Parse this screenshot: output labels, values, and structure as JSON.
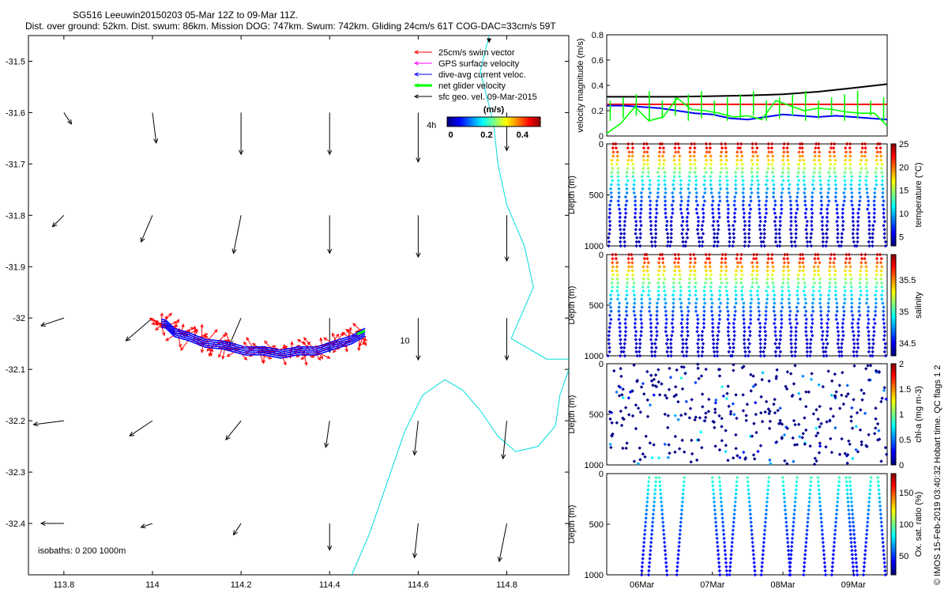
{
  "title": {
    "line1": "SG516 Leeuwin20150203 05-Mar 12Z to 09-Mar 11Z.",
    "line2": "Dist. over ground: 52km. Dist. swum: 86km. Mission DOG: 747km. Swum: 742km. Gliding 24cm/s 61T COG-DAC=33cm/s 59T"
  },
  "side_note": "© IMOS 15-Feb-2019 03:40:32 Hobart time. QC flags 1  2",
  "colors": {
    "swim": "#ff0000",
    "gps": "#ff00ff",
    "dac": "#0000ff",
    "net": "#00ff00",
    "geo": "#000000",
    "coast": "#00dddd"
  },
  "chart_data": [
    {
      "type": "scatter",
      "name": "map",
      "xlim": [
        113.72,
        114.94
      ],
      "ylim": [
        -32.5,
        -31.45
      ],
      "xticks": [
        113.8,
        114.0,
        114.2,
        114.4,
        114.6,
        114.8
      ],
      "xtick_labels": [
        "113.8",
        "114",
        "114.2",
        "114.4",
        "114.6",
        "114.8"
      ],
      "yticks": [
        -31.5,
        -31.6,
        -31.7,
        -31.8,
        -31.9,
        -32.0,
        -32.1,
        -32.2,
        -32.3,
        -32.4
      ],
      "ytick_labels": [
        "-31.5",
        "-31.6",
        "-31.7",
        "-31.8",
        "-31.9",
        "-32",
        "-32.1",
        "-32.2",
        "-32.3",
        "-32.4"
      ],
      "legend": {
        "position": "top-right",
        "entries": [
          {
            "label": "25cm/s swim vector",
            "color": "#ff0000"
          },
          {
            "label": "GPS surface velocity",
            "color": "#ff00ff"
          },
          {
            "label": "dive-avg current veloc.",
            "color": "#0000ff"
          },
          {
            "label": "net glider velocity",
            "color": "#00ff00"
          },
          {
            "label": "sfc geo. vel. 09-Mar-2015",
            "color": "#000000"
          }
        ]
      },
      "colorbar": {
        "label": "(m/s)",
        "ticks": [
          0,
          0.2,
          0.4
        ],
        "tick_labels": [
          "0",
          "0.2",
          "0.4"
        ],
        "range": [
          -0.02,
          0.5
        ]
      },
      "annotations": [
        {
          "text": "4h",
          "x": 114.63,
          "y": -31.63
        },
        {
          "text": "10",
          "x": 114.57,
          "y": -32.05
        }
      ],
      "isobaths_label": "isobaths: 0   200   1000m",
      "track": {
        "lon": [
          114.48,
          114.45,
          114.41,
          114.37,
          114.33,
          114.29,
          114.25,
          114.21,
          114.16,
          114.12,
          114.08,
          114.05,
          114.03,
          114.02
        ],
        "lat": [
          -32.03,
          -32.04,
          -32.055,
          -32.062,
          -32.066,
          -32.068,
          -32.066,
          -32.062,
          -32.055,
          -32.047,
          -32.038,
          -32.026,
          -32.014,
          -32.008
        ]
      },
      "net_velocity_end": {
        "lon": 114.48,
        "lat": -32.025
      },
      "current_vectors": {
        "grid_lon": [
          113.8,
          114.0,
          114.2,
          114.4,
          114.6,
          114.8
        ],
        "grid_lat": [
          -31.6,
          -31.8,
          -32.0,
          -32.2,
          -32.4
        ],
        "u": [
          [
            0.02,
            0.01,
            0.0,
            0.0,
            0.0,
            0.0
          ],
          [
            -0.03,
            -0.03,
            -0.02,
            0.0,
            0.0,
            0.0
          ],
          [
            -0.06,
            -0.07,
            -0.03,
            0.0,
            0.0,
            0.0
          ],
          [
            -0.08,
            -0.06,
            -0.04,
            -0.01,
            -0.01,
            -0.01
          ],
          [
            -0.06,
            -0.03,
            -0.02,
            0.0,
            -0.01,
            -0.02
          ]
        ],
        "v": [
          [
            -0.03,
            -0.08,
            -0.11,
            -0.11,
            -0.13,
            -0.1
          ],
          [
            -0.03,
            -0.07,
            -0.1,
            -0.1,
            -0.11,
            -0.12
          ],
          [
            -0.02,
            -0.06,
            -0.07,
            -0.09,
            -0.11,
            -0.11
          ],
          [
            -0.01,
            -0.04,
            -0.05,
            -0.07,
            -0.09,
            -0.1
          ],
          [
            0.0,
            -0.01,
            -0.03,
            -0.07,
            -0.09,
            -0.1
          ]
        ]
      },
      "coastline": {
        "lon": [
          114.76,
          114.74,
          114.77,
          114.78,
          114.8,
          114.84,
          114.86,
          114.83,
          114.81,
          114.85,
          114.89,
          114.94
        ],
        "lat": [
          -31.45,
          -31.52,
          -31.62,
          -31.7,
          -31.78,
          -31.86,
          -31.94,
          -32.0,
          -32.04,
          -32.06,
          -32.08,
          -32.08
        ]
      },
      "coastline2": {
        "lon": [
          114.45,
          114.49,
          114.53,
          114.57,
          114.61,
          114.66,
          114.7,
          114.74,
          114.78,
          114.82,
          114.87,
          114.91,
          114.92,
          114.94
        ],
        "lat": [
          -32.5,
          -32.42,
          -32.32,
          -32.22,
          -32.15,
          -32.12,
          -32.14,
          -32.18,
          -32.23,
          -32.26,
          -32.25,
          -32.21,
          -32.15,
          -32.1
        ]
      }
    },
    {
      "type": "line",
      "name": "velocity",
      "ylabel": "velocity magnitude (m/s)",
      "ylim": [
        0,
        0.8
      ],
      "yticks": [
        0,
        0.2,
        0.4,
        0.6,
        0.8
      ],
      "ytick_labels": [
        "0",
        "0.2",
        "0.4",
        "0.6",
        "0.8"
      ],
      "x_days": [
        5.5,
        9.48
      ],
      "series": [
        {
          "name": "sfc geo. vel.",
          "color": "#000000",
          "x": [
            5.5,
            6.0,
            6.5,
            7.0,
            7.5,
            8.0,
            8.5,
            9.0,
            9.48
          ],
          "values": [
            0.31,
            0.31,
            0.31,
            0.315,
            0.32,
            0.33,
            0.35,
            0.38,
            0.41
          ]
        },
        {
          "name": "25cm/s swim",
          "color": "#ff0000",
          "x": [
            5.5,
            9.48
          ],
          "values": [
            0.25,
            0.25
          ]
        },
        {
          "name": "dive-avg current",
          "color": "#0000ff",
          "x": [
            5.5,
            5.75,
            6.0,
            6.25,
            6.5,
            6.75,
            7.0,
            7.25,
            7.5,
            7.75,
            8.0,
            8.25,
            8.5,
            8.75,
            9.0,
            9.25,
            9.48
          ],
          "values": [
            0.24,
            0.24,
            0.23,
            0.22,
            0.2,
            0.18,
            0.17,
            0.14,
            0.13,
            0.15,
            0.17,
            0.16,
            0.15,
            0.16,
            0.15,
            0.14,
            0.13
          ]
        },
        {
          "name": "net glider velocity",
          "color": "#00ff00",
          "x": [
            5.5,
            5.7,
            5.9,
            6.1,
            6.3,
            6.5,
            6.7,
            6.9,
            7.1,
            7.3,
            7.5,
            7.7,
            7.9,
            8.1,
            8.3,
            8.5,
            8.7,
            8.9,
            9.1,
            9.3,
            9.48
          ],
          "values": [
            0.02,
            0.1,
            0.23,
            0.12,
            0.15,
            0.3,
            0.21,
            0.2,
            0.18,
            0.15,
            0.16,
            0.13,
            0.28,
            0.24,
            0.2,
            0.22,
            0.21,
            0.19,
            0.18,
            0.18,
            0.08
          ]
        }
      ]
    },
    {
      "type": "scatter",
      "name": "temperature",
      "ylabel": "Depth (m)",
      "ylim": [
        1000,
        0
      ],
      "yticks": [
        0,
        500,
        1000
      ],
      "ytick_labels": [
        "0",
        "500",
        "1000"
      ],
      "colorbar": {
        "label": "temperature (°C)",
        "range": [
          3,
          25
        ],
        "ticks": [
          5,
          10,
          15,
          20,
          25
        ],
        "tick_labels": [
          "5",
          "10",
          "15",
          "20",
          "25"
        ]
      },
      "profiles": 36,
      "max_depth": 1000,
      "value_surface": 24,
      "value_bottom": 4
    },
    {
      "type": "scatter",
      "name": "salinity",
      "ylabel": "Depth (m)",
      "ylim": [
        1000,
        0
      ],
      "yticks": [
        0,
        500,
        1000
      ],
      "ytick_labels": [
        "0",
        "500",
        "1000"
      ],
      "colorbar": {
        "label": "salinity",
        "range": [
          34.3,
          35.9
        ],
        "ticks": [
          34.5,
          35,
          35.5
        ],
        "tick_labels": [
          "34.5",
          "35",
          "35.5"
        ]
      },
      "profiles": 36,
      "max_depth": 1000,
      "value_surface": 35.8,
      "value_bottom": 34.4
    },
    {
      "type": "scatter",
      "name": "chl-a",
      "ylabel": "Depth (m)",
      "ylim": [
        1000,
        0
      ],
      "yticks": [
        0,
        500,
        1000
      ],
      "ytick_labels": [
        "0",
        "500",
        "1000"
      ],
      "colorbar": {
        "label": "chl-a (mg m-3)",
        "range": [
          0,
          2
        ],
        "ticks": [
          0,
          0.5,
          1,
          1.5,
          2
        ],
        "tick_labels": [
          "0",
          "0.5",
          "1",
          "1.5",
          "2"
        ]
      },
      "profiles": 36,
      "max_depth": 1000,
      "value_surface": 0.5,
      "value_bottom": 0.0
    },
    {
      "type": "scatter",
      "name": "oxygen",
      "ylabel": "Depth (m)",
      "ylim": [
        1000,
        0
      ],
      "yticks": [
        0,
        500,
        1000
      ],
      "ytick_labels": [
        "0",
        "500",
        "1000"
      ],
      "colorbar": {
        "label": "Ox. sat. ratio (%)",
        "range": [
          20,
          180
        ],
        "ticks": [
          50,
          100,
          150
        ],
        "tick_labels": [
          "50",
          "100",
          "150"
        ]
      },
      "profiles": 18,
      "max_depth": 1000,
      "value_surface": 95,
      "value_bottom": 40,
      "xticks": [
        6.0,
        7.0,
        8.0,
        9.0
      ],
      "xtick_labels": [
        "06Mar",
        "07Mar",
        "08Mar",
        "09Mar"
      ]
    }
  ]
}
